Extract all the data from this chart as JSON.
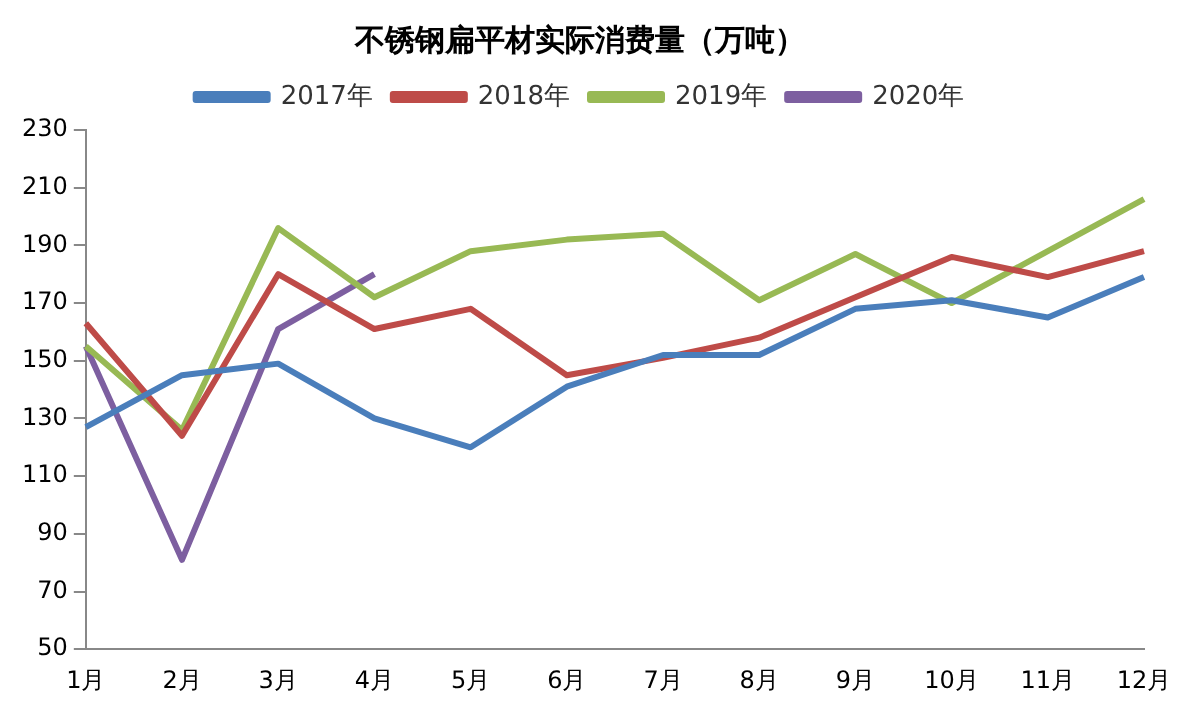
{
  "chart_data": {
    "type": "line",
    "title": "不锈钢扁平材实际消费量（万吨）",
    "categories": [
      "1月",
      "2月",
      "3月",
      "4月",
      "5月",
      "6月",
      "7月",
      "8月",
      "9月",
      "10月",
      "11月",
      "12月"
    ],
    "series": [
      {
        "name": "2017年",
        "color": "#4a7ebb",
        "values": [
          127,
          145,
          149,
          130,
          120,
          141,
          152,
          152,
          168,
          171,
          165,
          179
        ]
      },
      {
        "name": "2018年",
        "color": "#be4b48",
        "values": [
          163,
          124,
          180,
          161,
          168,
          145,
          151,
          158,
          172,
          186,
          179,
          188
        ]
      },
      {
        "name": "2019年",
        "color": "#98b954",
        "values": [
          155,
          126,
          196,
          172,
          188,
          192,
          194,
          171,
          187,
          170,
          188,
          206
        ]
      },
      {
        "name": "2020年",
        "color": "#7d5fa0",
        "values": [
          155,
          81,
          161,
          180,
          null,
          null,
          null,
          null,
          null,
          null,
          null,
          null
        ]
      }
    ],
    "ylim": [
      50,
      230
    ],
    "yticks": [
      50,
      70,
      90,
      110,
      130,
      150,
      170,
      190,
      210,
      230
    ],
    "grid": false,
    "legend": "top",
    "marker": "none",
    "line_style": "solid"
  }
}
